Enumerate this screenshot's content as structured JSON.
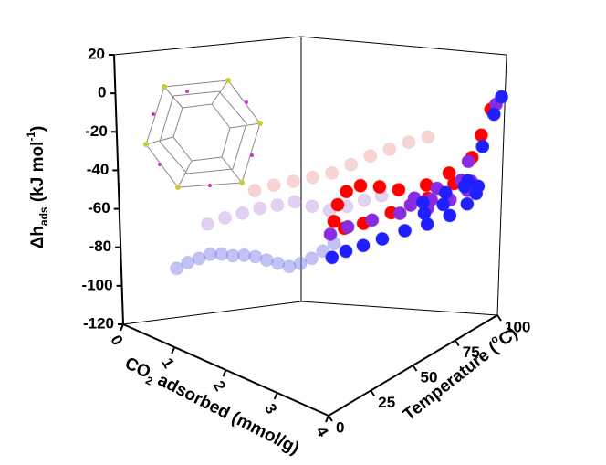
{
  "chart_data": {
    "type": "scatter3d",
    "zlabel": {
      "main": "Δh",
      "sub": "ads",
      "rest": " (kJ mol",
      "sup": "-1",
      "end": ")"
    },
    "xlabel": {
      "main": "CO",
      "sub": "2",
      "rest": " adsorbed (mmol/g)"
    },
    "ylabel": {
      "main": "Temperature (",
      "sup": "o",
      "end": "C)"
    },
    "xlim": [
      0,
      4
    ],
    "xticks": [
      0,
      1,
      2,
      3,
      4
    ],
    "ylim": [
      0,
      100
    ],
    "yticks": [
      0,
      25,
      50,
      75,
      100
    ],
    "zlim": [
      -120,
      20
    ],
    "zticks": [
      -120,
      -100,
      -80,
      -60,
      -40,
      -20,
      0,
      20
    ],
    "series": [
      {
        "color": "#7878e8",
        "opacity": 0.45,
        "x": [
          0.8,
          0.95,
          1.1,
          1.25,
          1.4,
          1.55,
          1.7,
          1.85,
          2.0,
          2.15,
          2.3,
          2.45,
          2.6,
          2.75,
          2.9
        ],
        "y": [
          8,
          10,
          12,
          14,
          16,
          18,
          20,
          22,
          24,
          26,
          28,
          30,
          32,
          34,
          36
        ],
        "z": [
          -84,
          -80,
          -77,
          -74,
          -73,
          -73,
          -72,
          -72,
          -73,
          -74,
          -75,
          -73,
          -70,
          -66,
          -62
        ]
      },
      {
        "color": "#b07ad8",
        "opacity": 0.35,
        "x": [
          1.0,
          1.2,
          1.4,
          1.6,
          1.8,
          2.0,
          2.2,
          2.4,
          2.6,
          2.8,
          3.0
        ],
        "y": [
          20,
          24,
          28,
          32,
          36,
          40,
          44,
          48,
          52,
          56,
          60
        ],
        "z": [
          -62,
          -58,
          -55,
          -52,
          -50,
          -48,
          -50,
          -52,
          -50,
          -47,
          -45
        ]
      },
      {
        "color": "#e88888",
        "opacity": 0.35,
        "x": [
          1.4,
          1.6,
          1.8,
          2.0,
          2.2,
          2.4,
          2.6,
          2.8,
          3.0,
          3.2
        ],
        "y": [
          35,
          40,
          45,
          50,
          55,
          60,
          65,
          70,
          75,
          80
        ],
        "z": [
          -45,
          -42,
          -40,
          -38,
          -36,
          -32,
          -28,
          -25,
          -22,
          -20
        ]
      },
      {
        "color": "#ff0000",
        "opacity": 1,
        "x": [
          3.9,
          3.9,
          3.8,
          3.7,
          3.5,
          3.3,
          3.1,
          3.0,
          3.0,
          3.1,
          3.3,
          3.5,
          3.7,
          3.9,
          3.9,
          3.9
        ],
        "y": [
          95,
          85,
          75,
          65,
          55,
          50,
          45,
          40,
          35,
          30,
          30,
          35,
          45,
          60,
          75,
          90
        ],
        "z": [
          -8,
          -30,
          -35,
          -38,
          -38,
          -36,
          -35,
          -37,
          -42,
          -48,
          -50,
          -48,
          -45,
          -42,
          -40,
          -20
        ]
      },
      {
        "color": "#8a2be2",
        "opacity": 1,
        "x": [
          3.2,
          3.3,
          3.5,
          3.7,
          3.9,
          4.0,
          4.0,
          3.8,
          3.6,
          3.4,
          3.3,
          3.5,
          3.8,
          4.0,
          4.0
        ],
        "y": [
          25,
          32,
          40,
          50,
          60,
          70,
          80,
          88,
          88,
          80,
          70,
          62,
          65,
          80,
          95
        ],
        "z": [
          -52,
          -50,
          -48,
          -47,
          -47,
          -46,
          -45,
          -44,
          -44,
          -46,
          -48,
          -48,
          -45,
          -30,
          -5
        ]
      },
      {
        "color": "#1f1fff",
        "opacity": 1,
        "x": [
          3.4,
          3.5,
          3.6,
          3.7,
          3.8,
          3.9,
          4.0,
          4.0,
          3.9,
          3.8,
          3.6,
          3.4,
          3.3,
          3.5,
          3.8,
          4.0,
          4.0,
          4.0,
          4.0
        ],
        "y": [
          20,
          25,
          32,
          40,
          50,
          60,
          70,
          80,
          88,
          92,
          90,
          85,
          75,
          70,
          72,
          80,
          88,
          94,
          98
        ],
        "z": [
          -60,
          -58,
          -57,
          -56,
          -55,
          -55,
          -54,
          -52,
          -50,
          -48,
          -48,
          -50,
          -52,
          -55,
          -50,
          -40,
          -25,
          -10,
          -2
        ]
      }
    ]
  }
}
